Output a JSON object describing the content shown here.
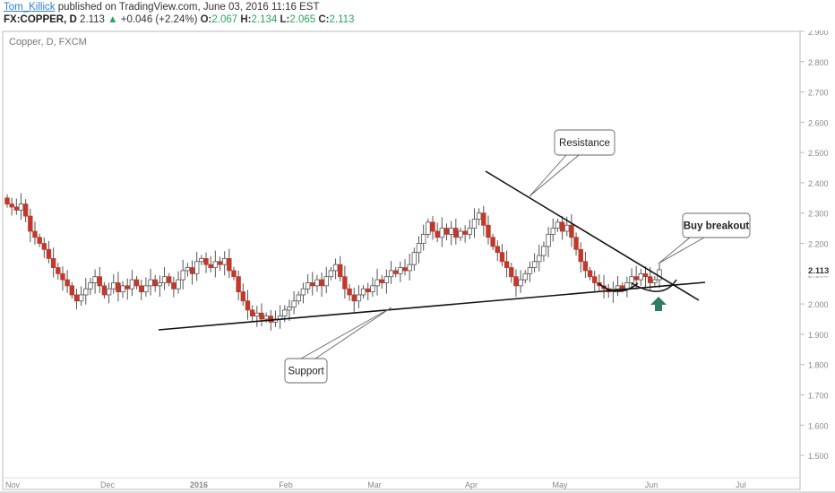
{
  "header": {
    "username": "Tom_Killick",
    "published_text": "published on TradingView.com, June 03, 2016 11:16 EST",
    "symbol": "FX:COPPER, D",
    "price": "2.113",
    "change_arrow": "▲",
    "change": "+0.046 (+2.24%)",
    "open_label": "O:",
    "open": "2.067",
    "high_label": "H:",
    "high": "2.134",
    "low_label": "L:",
    "low": "2.065",
    "close_label": "C:",
    "close": "2.113"
  },
  "chart_data": {
    "type": "candlestick",
    "title": "Copper, D, FXCM",
    "ylim": [
      1.45,
      2.91
    ],
    "y_ticks": [
      "1.500",
      "1.600",
      "1.700",
      "1.800",
      "1.900",
      "2.000",
      "2.100",
      "2.200",
      "2.300",
      "2.400",
      "2.500",
      "2.600",
      "2.700",
      "2.800",
      "2.900"
    ],
    "x_labels": [
      "Nov",
      "Dec",
      "2016",
      "Feb",
      "Mar",
      "Apr",
      "May",
      "Jun",
      "Jul"
    ],
    "last_price_label": "2.113",
    "colors": {
      "up": "#ffffff",
      "down": "#c0392b",
      "wick": "#555555",
      "annotation_line": "#111111",
      "arrow": "#2e7d5b",
      "current_price_mark": "#444444"
    },
    "close_series": [
      2.33,
      2.32,
      2.31,
      2.33,
      2.29,
      2.24,
      2.22,
      2.2,
      2.18,
      2.15,
      2.12,
      2.1,
      2.08,
      2.06,
      2.03,
      2.01,
      2.03,
      2.05,
      2.07,
      2.09,
      2.06,
      2.03,
      2.05,
      2.07,
      2.04,
      2.06,
      2.05,
      2.08,
      2.06,
      2.04,
      2.06,
      2.08,
      2.06,
      2.07,
      2.09,
      2.07,
      2.05,
      2.08,
      2.11,
      2.12,
      2.1,
      2.14,
      2.15,
      2.13,
      2.12,
      2.14,
      2.13,
      2.15,
      2.11,
      2.09,
      2.04,
      2.01,
      1.98,
      1.96,
      1.97,
      1.95,
      1.96,
      1.94,
      1.95,
      1.96,
      1.98,
      1.99,
      2.01,
      2.03,
      2.05,
      2.07,
      2.06,
      2.08,
      2.06,
      2.09,
      2.11,
      2.13,
      2.09,
      2.05,
      2.03,
      2.01,
      2.03,
      2.05,
      2.04,
      2.06,
      2.08,
      2.07,
      2.09,
      2.11,
      2.1,
      2.12,
      2.11,
      2.13,
      2.17,
      2.2,
      2.23,
      2.27,
      2.24,
      2.22,
      2.25,
      2.23,
      2.25,
      2.22,
      2.24,
      2.23,
      2.25,
      2.28,
      2.3,
      2.26,
      2.22,
      2.19,
      2.17,
      2.14,
      2.12,
      2.09,
      2.06,
      2.08,
      2.1,
      2.12,
      2.14,
      2.16,
      2.19,
      2.23,
      2.25,
      2.27,
      2.24,
      2.26,
      2.22,
      2.18,
      2.14,
      2.11,
      2.09,
      2.07,
      2.06,
      2.05,
      2.04,
      2.05,
      2.06,
      2.05,
      2.07,
      2.09,
      2.08,
      2.1,
      2.09,
      2.07,
      2.08,
      2.113
    ],
    "annotations": [
      {
        "text": "Resistance",
        "kind": "callout"
      },
      {
        "text": "Support",
        "kind": "callout"
      },
      {
        "text": "Buy breakout",
        "kind": "callout"
      }
    ]
  }
}
